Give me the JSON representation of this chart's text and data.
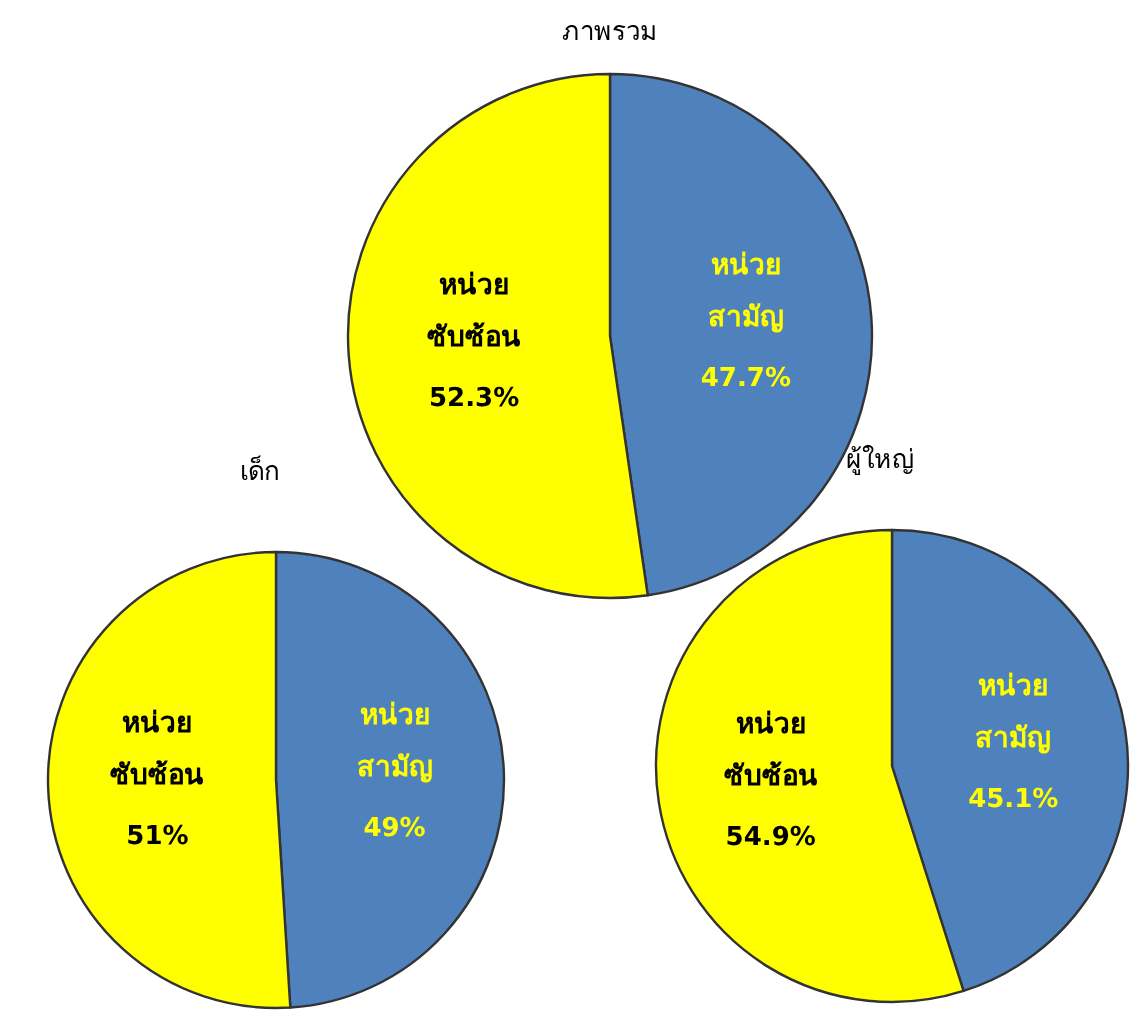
{
  "chart_data": [
    {
      "type": "pie",
      "title": "ภาพรวม",
      "categories": [
        "หน่วย สามัญ",
        "หน่วย ซับซ้อน"
      ],
      "values": [
        47.7,
        52.3
      ],
      "colors": [
        "#4f81bd",
        "#ffff00"
      ],
      "value_labels": [
        "47.7%",
        "52.3%"
      ],
      "legend": false
    },
    {
      "type": "pie",
      "title": "เด็ก",
      "categories": [
        "หน่วย สามัญ",
        "หน่วย ซับซ้อน"
      ],
      "values": [
        49,
        51
      ],
      "colors": [
        "#4f81bd",
        "#ffff00"
      ],
      "value_labels": [
        "49%",
        "51%"
      ],
      "legend": false
    },
    {
      "type": "pie",
      "title": "ผู้ใหญ่",
      "categories": [
        "หน่วย สามัญ",
        "หน่วย ซับซ้อน"
      ],
      "values": [
        45.1,
        54.9
      ],
      "colors": [
        "#4f81bd",
        "#ffff00"
      ],
      "value_labels": [
        "45.1%",
        "54.9%"
      ],
      "legend": false
    }
  ]
}
